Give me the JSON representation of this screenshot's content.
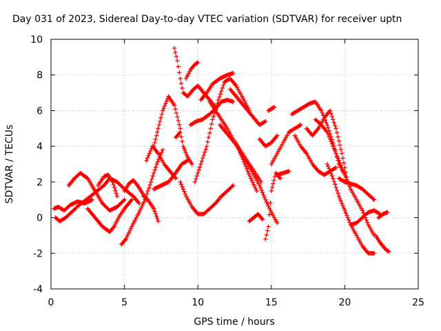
{
  "chart_data": {
    "type": "scatter",
    "title": "Day 031 of 2023, Sidereal Day-to-day VTEC variation (SDTVAR) for receiver uptn",
    "xlabel": "GPS time / hours",
    "ylabel": "SDTVAR / TECUs",
    "xlim": [
      0,
      25
    ],
    "ylim": [
      -4,
      10
    ],
    "xticks": [
      0,
      5,
      10,
      15,
      20,
      25
    ],
    "yticks": [
      -4,
      -2,
      0,
      2,
      4,
      6,
      8,
      10
    ],
    "xtick_labels": [
      "0",
      "5",
      "10",
      "15",
      "20",
      "25"
    ],
    "ytick_labels": [
      "-4",
      "-2",
      "0",
      "2",
      "4",
      "6",
      "8",
      "10"
    ],
    "grid": true,
    "marker": "plus",
    "color": "#ff0000",
    "series": [
      {
        "name": "trace-01",
        "x": [
          0.2,
          0.5,
          0.9,
          1.3,
          1.8,
          2.3,
          2.8
        ],
        "y": [
          0.5,
          0.6,
          0.4,
          0.7,
          0.9,
          0.8,
          1.0
        ]
      },
      {
        "name": "trace-02",
        "x": [
          0.3,
          0.6,
          1.0,
          1.4,
          1.9,
          2.4,
          3.0,
          3.6,
          4.0,
          4.5,
          5.0,
          5.6,
          6.0
        ],
        "y": [
          0.0,
          -0.2,
          0.0,
          0.3,
          0.7,
          1.0,
          1.4,
          1.8,
          2.2,
          2.0,
          1.6,
          1.2,
          0.8
        ]
      },
      {
        "name": "trace-03",
        "x": [
          1.2,
          1.6,
          2.0,
          2.5,
          3.0,
          3.5,
          4.0,
          4.5,
          5.0
        ],
        "y": [
          1.8,
          2.2,
          2.5,
          2.2,
          1.5,
          0.8,
          0.4,
          0.6,
          1.0
        ]
      },
      {
        "name": "trace-04",
        "x": [
          2.5,
          3.0,
          3.5,
          4.0,
          4.3,
          4.6,
          5.0,
          5.5
        ],
        "y": [
          0.5,
          0.0,
          -0.5,
          -0.8,
          -0.5,
          0.0,
          0.5,
          1.0
        ]
      },
      {
        "name": "trace-05",
        "x": [
          3.2,
          3.6,
          3.9,
          4.2,
          4.5
        ],
        "y": [
          1.8,
          2.3,
          2.4,
          2.0,
          1.2
        ]
      },
      {
        "name": "trace-06",
        "x": [
          4.8,
          5.1,
          5.5,
          6.0,
          6.4,
          6.8,
          7.2,
          7.6
        ],
        "y": [
          -1.5,
          -1.2,
          -0.5,
          0.3,
          1.0,
          2.0,
          3.0,
          3.8
        ]
      },
      {
        "name": "trace-07",
        "x": [
          5.0,
          5.3,
          5.6,
          5.9,
          6.2,
          6.5
        ],
        "y": [
          1.5,
          1.9,
          2.1,
          1.8,
          1.4,
          1.0
        ]
      },
      {
        "name": "trace-08",
        "x": [
          6.3,
          6.6,
          7.0,
          7.3
        ],
        "y": [
          1.2,
          1.0,
          0.5,
          -0.2
        ]
      },
      {
        "name": "trace-09",
        "x": [
          6.5,
          6.9,
          7.3,
          7.7,
          8.1,
          8.5
        ],
        "y": [
          3.2,
          4.0,
          3.6,
          3.0,
          2.6,
          2.2
        ]
      },
      {
        "name": "trace-10",
        "x": [
          7.0,
          7.3,
          7.6,
          8.0,
          8.4,
          8.8
        ],
        "y": [
          4.0,
          5.0,
          6.0,
          6.8,
          6.3,
          5.0
        ]
      },
      {
        "name": "trace-11",
        "x": [
          7.0,
          7.5,
          8.0,
          8.4,
          8.9,
          9.3
        ],
        "y": [
          1.6,
          1.8,
          2.0,
          2.4,
          3.0,
          3.2
        ]
      },
      {
        "name": "trace-12",
        "x": [
          8.4,
          8.6,
          8.8,
          9.0,
          9.3,
          9.7,
          10.0,
          10.4,
          10.8,
          11.2
        ],
        "y": [
          9.5,
          8.8,
          7.8,
          7.0,
          6.8,
          7.2,
          7.4,
          7.0,
          6.6,
          6.2
        ]
      },
      {
        "name": "trace-13",
        "x": [
          8.5,
          8.8,
          9.0,
          9.3,
          9.6
        ],
        "y": [
          4.5,
          4.8,
          4.0,
          3.4,
          3.0
        ]
      },
      {
        "name": "trace-14",
        "x": [
          8.8,
          9.2,
          9.6,
          10.0,
          10.4,
          10.8,
          11.2,
          11.6,
          12.0,
          12.4
        ],
        "y": [
          2.0,
          1.2,
          0.6,
          0.2,
          0.2,
          0.5,
          0.8,
          1.2,
          1.5,
          1.8
        ]
      },
      {
        "name": "trace-15",
        "x": [
          9.2,
          9.5,
          9.8,
          10.0
        ],
        "y": [
          7.8,
          8.3,
          8.6,
          8.7
        ]
      },
      {
        "name": "trace-16",
        "x": [
          9.5,
          9.9,
          10.3,
          10.8,
          11.2,
          11.6,
          12.0,
          12.4
        ],
        "y": [
          5.2,
          5.4,
          5.5,
          5.8,
          6.1,
          6.5,
          6.6,
          6.5
        ]
      },
      {
        "name": "trace-17",
        "x": [
          9.8,
          10.2,
          10.6,
          11.0,
          11.4,
          11.8,
          12.2,
          12.6,
          13.0,
          13.5
        ],
        "y": [
          2.0,
          3.0,
          4.0,
          5.5,
          6.6,
          7.6,
          7.8,
          7.4,
          6.8,
          6.0
        ]
      },
      {
        "name": "trace-18",
        "x": [
          10.2,
          10.6,
          11.0,
          11.5,
          12.0,
          12.4
        ],
        "y": [
          6.6,
          7.0,
          7.5,
          7.8,
          8.0,
          8.1
        ]
      },
      {
        "name": "trace-19",
        "x": [
          10.8,
          11.2,
          11.6,
          12.0,
          12.4,
          12.8,
          13.2,
          13.6,
          14.0
        ],
        "y": [
          6.5,
          6.0,
          5.5,
          5.0,
          4.4,
          3.8,
          3.0,
          2.2,
          1.5
        ]
      },
      {
        "name": "trace-20",
        "x": [
          11.5,
          11.9,
          12.3,
          12.7,
          13.1,
          13.5,
          13.9,
          14.3
        ],
        "y": [
          5.2,
          4.8,
          4.4,
          4.0,
          3.5,
          3.0,
          2.5,
          2.0
        ]
      },
      {
        "name": "trace-21",
        "x": [
          12.2,
          12.6,
          13.0,
          13.4,
          13.8,
          14.2,
          14.6
        ],
        "y": [
          7.2,
          6.8,
          6.4,
          6.0,
          5.6,
          5.2,
          5.4
        ]
      },
      {
        "name": "trace-22",
        "x": [
          12.6,
          13.0,
          13.4,
          13.8,
          14.2,
          14.6,
          15.0,
          15.4
        ],
        "y": [
          4.2,
          3.5,
          3.0,
          2.4,
          1.8,
          1.0,
          0.3,
          -0.3
        ]
      },
      {
        "name": "trace-23",
        "x": [
          13.5,
          13.8,
          14.1,
          14.4
        ],
        "y": [
          -0.2,
          0.0,
          0.2,
          -0.1
        ]
      },
      {
        "name": "trace-24",
        "x": [
          14.2,
          14.6,
          15.0,
          15.4
        ],
        "y": [
          4.4,
          4.0,
          4.2,
          4.6
        ]
      },
      {
        "name": "trace-25",
        "x": [
          14.6,
          14.8,
          15.0,
          15.3,
          15.6
        ],
        "y": [
          -1.2,
          -0.5,
          1.5,
          2.5,
          2.2
        ]
      },
      {
        "name": "trace-26",
        "x": [
          14.8,
          15.0,
          15.2
        ],
        "y": [
          6.0,
          6.1,
          6.2
        ]
      },
      {
        "name": "trace-27",
        "x": [
          15.0,
          15.4,
          15.8,
          16.2,
          16.6,
          17.0
        ],
        "y": [
          3.0,
          3.6,
          4.2,
          4.8,
          5.0,
          5.2
        ]
      },
      {
        "name": "trace-28",
        "x": [
          15.4,
          15.8,
          16.2
        ],
        "y": [
          2.4,
          2.5,
          2.6
        ]
      },
      {
        "name": "trace-29",
        "x": [
          16.4,
          16.8,
          17.2,
          17.6,
          18.0,
          18.4,
          18.8,
          19.2,
          19.6,
          20.0
        ],
        "y": [
          5.8,
          6.0,
          6.2,
          6.4,
          6.5,
          6.0,
          5.2,
          4.2,
          3.0,
          2.4
        ]
      },
      {
        "name": "trace-30",
        "x": [
          16.6,
          17.0,
          17.4,
          17.8,
          18.2,
          18.6,
          19.0,
          19.4
        ],
        "y": [
          4.6,
          4.0,
          3.6,
          3.0,
          2.6,
          2.4,
          2.6,
          2.8
        ]
      },
      {
        "name": "trace-31",
        "x": [
          17.4,
          17.8,
          18.2,
          18.6,
          19.0,
          19.4,
          19.8,
          20.2
        ],
        "y": [
          5.0,
          4.6,
          5.0,
          5.6,
          6.0,
          5.0,
          3.6,
          2.0
        ]
      },
      {
        "name": "trace-32",
        "x": [
          18.0,
          18.4,
          18.8,
          19.2,
          19.6,
          20.0,
          20.4,
          20.8,
          21.2,
          21.6,
          22.0
        ],
        "y": [
          5.5,
          5.2,
          4.8,
          4.0,
          3.2,
          2.4,
          1.6,
          1.0,
          0.4,
          -0.4,
          -1.0
        ]
      },
      {
        "name": "trace-33",
        "x": [
          18.8,
          19.2,
          19.6,
          20.0,
          20.4,
          20.8,
          21.2,
          21.6,
          22.0
        ],
        "y": [
          3.0,
          2.2,
          1.2,
          0.4,
          -0.4,
          -1.0,
          -1.6,
          -2.0,
          -2.0
        ]
      },
      {
        "name": "trace-34",
        "x": [
          19.6,
          20.0,
          20.4,
          20.8,
          21.2,
          21.6,
          22.0
        ],
        "y": [
          2.2,
          2.0,
          1.9,
          1.8,
          1.6,
          1.3,
          1.0
        ]
      },
      {
        "name": "trace-35",
        "x": [
          20.4,
          20.8,
          21.2,
          21.6,
          22.0,
          22.4
        ],
        "y": [
          -0.4,
          -0.3,
          0.0,
          0.3,
          0.4,
          0.2
        ]
      },
      {
        "name": "trace-36",
        "x": [
          22.1,
          22.4,
          22.6,
          22.8,
          23.0
        ],
        "y": [
          -1.0,
          -1.4,
          -1.6,
          -1.8,
          -1.9
        ]
      },
      {
        "name": "trace-37",
        "x": [
          22.3,
          22.6,
          22.9
        ],
        "y": [
          0.0,
          0.2,
          0.3
        ]
      }
    ]
  }
}
